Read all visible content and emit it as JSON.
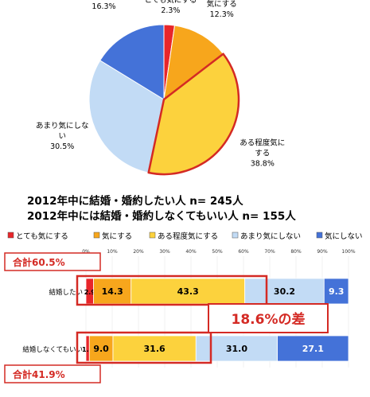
{
  "colors": {
    "very": "#e8262a",
    "concerned": "#f7a61c",
    "somewhat": "#fcd23d",
    "notmuch": "#c2dbf5",
    "not": "#4472d8",
    "accent": "#d42a24"
  },
  "header": {
    "line1": "2012年中に結婚・婚約したい人  n= 245人",
    "line2": "2012年中には結婚・婚約しなくてもいい人  n= 155人"
  },
  "callouts": {
    "total_a": "合計60.5%",
    "total_b": "合計41.9%",
    "diff": "18.6%の差"
  },
  "chart_data": [
    {
      "type": "pie",
      "labels": [
        "とても気にする",
        "気にする",
        "ある程度気にする",
        "あまり気にしない",
        "気にしない"
      ],
      "pie_label_lines": [
        [
          "とても気にする"
        ],
        [
          "気にする"
        ],
        [
          "ある程度気に",
          "する"
        ],
        [
          "あまり気にしな",
          "い"
        ],
        [
          "気にしない"
        ]
      ],
      "value_labels": [
        "2.3%",
        "12.3%",
        "38.8%",
        "30.5%",
        "16.3%"
      ],
      "values": [
        2.3,
        12.3,
        38.8,
        30.5,
        16.3
      ]
    },
    {
      "type": "bar",
      "orientation": "horizontal",
      "stacked": true,
      "categories": [
        "結婚したい",
        "結婚しなくてもいい"
      ],
      "legend": [
        "とても気にする",
        "気にする",
        "ある程度気にする",
        "あまり気にしない",
        "気にしない"
      ],
      "legend_placement": "top",
      "xlim": [
        0,
        100
      ],
      "xticks": [
        "0%",
        "10%",
        "20%",
        "30%",
        "40%",
        "50%",
        "60%",
        "70%",
        "80%",
        "90%",
        "100%"
      ],
      "series": [
        {
          "name": "とても気にする",
          "values": [
            2.9,
            1.3
          ],
          "labels": [
            "2.9",
            "1.3"
          ]
        },
        {
          "name": "気にする",
          "values": [
            14.3,
            9.0
          ],
          "labels": [
            "14.3",
            "9.0"
          ]
        },
        {
          "name": "ある程度気にする",
          "values": [
            43.3,
            31.6
          ],
          "labels": [
            "43.3",
            "31.6"
          ]
        },
        {
          "name": "あまり気にしない",
          "values": [
            30.2,
            31.0
          ],
          "labels": [
            "30.2",
            "31.0"
          ]
        },
        {
          "name": "気にしない",
          "values": [
            9.3,
            27.1
          ],
          "labels": [
            "9.3",
            "27.1"
          ]
        }
      ]
    }
  ]
}
